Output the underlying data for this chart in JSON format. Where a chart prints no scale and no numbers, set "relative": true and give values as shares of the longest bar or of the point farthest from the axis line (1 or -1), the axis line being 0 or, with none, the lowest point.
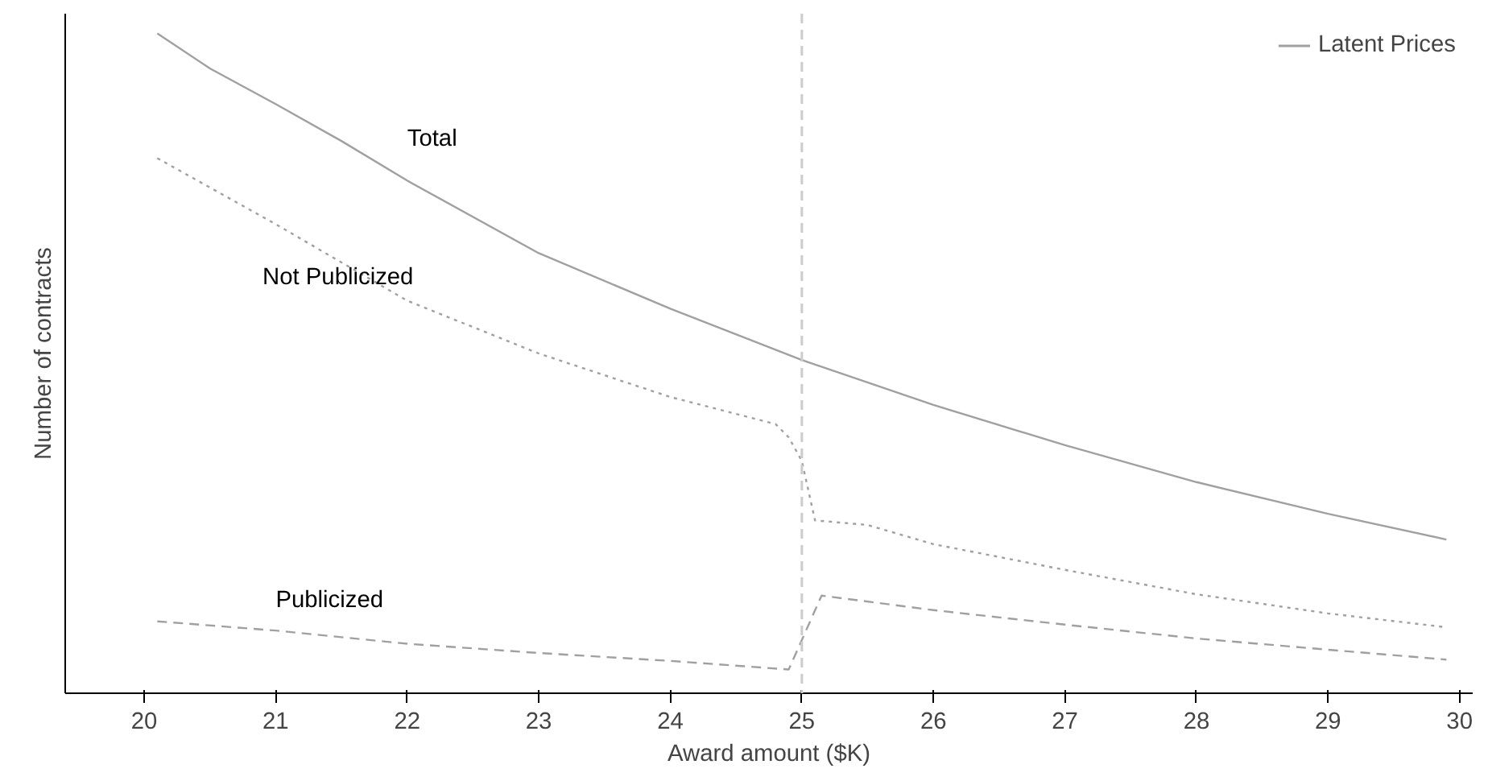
{
  "chart_data": {
    "type": "line",
    "relative": true,
    "xlabel": "Award amount ($K)",
    "ylabel": "Number of contracts",
    "legend_title": "Latent Prices",
    "grid": false,
    "xlim": [
      19.4,
      30.1
    ],
    "xticks": [
      20,
      21,
      22,
      23,
      24,
      25,
      26,
      27,
      28,
      29,
      30
    ],
    "ref_lines": [
      {
        "axis": "x",
        "value": 25,
        "color": "#cccccc",
        "line_style": "dashed"
      }
    ],
    "series": [
      {
        "name": "Total",
        "color": "#a0a0a0",
        "line_style": "solid",
        "x": [
          20.1,
          20.5,
          21,
          21.5,
          22,
          23,
          24,
          25,
          26,
          27,
          28,
          29,
          29.9
        ],
        "values": [
          1.0,
          0.947,
          0.893,
          0.837,
          0.777,
          0.667,
          0.583,
          0.505,
          0.437,
          0.376,
          0.32,
          0.272,
          0.233
        ]
      },
      {
        "name": "Not Publicized",
        "color": "#a0a0a0",
        "line_style": "dotted",
        "x": [
          20.1,
          21,
          22,
          23,
          24,
          24.8,
          24.9,
          25,
          25.1,
          25.5,
          26,
          27,
          28,
          29,
          29.9
        ],
        "values": [
          0.811,
          0.711,
          0.595,
          0.515,
          0.449,
          0.408,
          0.388,
          0.352,
          0.262,
          0.255,
          0.226,
          0.187,
          0.15,
          0.121,
          0.1
        ]
      },
      {
        "name": "Publicized",
        "color": "#a0a0a0",
        "line_style": "dashed",
        "x": [
          20.1,
          21,
          22,
          23,
          24,
          24.9,
          25.15,
          26,
          27,
          28,
          29,
          29.9
        ],
        "values": [
          0.109,
          0.095,
          0.075,
          0.061,
          0.049,
          0.036,
          0.148,
          0.126,
          0.104,
          0.083,
          0.066,
          0.051
        ]
      }
    ]
  }
}
